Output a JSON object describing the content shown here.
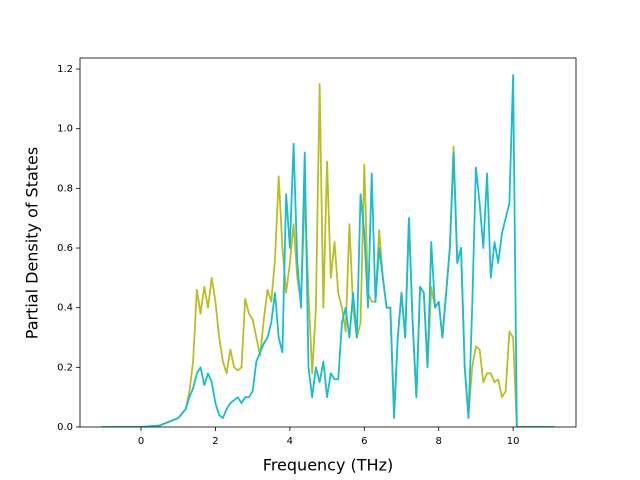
{
  "chart_data": {
    "type": "line",
    "xlabel": "Frequency (THz)",
    "ylabel": "Partial Density of States",
    "x": [
      -1.06,
      0,
      0.5,
      1.0,
      1.2,
      1.3,
      1.4,
      1.5,
      1.6,
      1.7,
      1.8,
      1.9,
      2.0,
      2.1,
      2.2,
      2.3,
      2.4,
      2.5,
      2.6,
      2.7,
      2.8,
      2.9,
      3.0,
      3.1,
      3.2,
      3.3,
      3.4,
      3.5,
      3.6,
      3.7,
      3.8,
      3.9,
      4.0,
      4.1,
      4.2,
      4.3,
      4.4,
      4.5,
      4.6,
      4.7,
      4.8,
      4.9,
      5.0,
      5.1,
      5.2,
      5.3,
      5.4,
      5.5,
      5.6,
      5.7,
      5.8,
      5.9,
      6.0,
      6.1,
      6.2,
      6.3,
      6.4,
      6.5,
      6.6,
      6.7,
      6.8,
      6.9,
      7.0,
      7.1,
      7.2,
      7.3,
      7.4,
      7.5,
      7.6,
      7.7,
      7.8,
      7.9,
      8.0,
      8.1,
      8.2,
      8.3,
      8.4,
      8.5,
      8.6,
      8.7,
      8.8,
      8.9,
      9.0,
      9.1,
      9.2,
      9.3,
      9.4,
      9.5,
      9.6,
      9.7,
      9.8,
      9.9,
      10.0,
      10.1,
      11.1
    ],
    "series": [
      {
        "color": "#bcbd22",
        "values": [
          0,
          0,
          0.005,
          0.03,
          0.06,
          0.12,
          0.22,
          0.46,
          0.38,
          0.47,
          0.4,
          0.5,
          0.42,
          0.3,
          0.22,
          0.18,
          0.26,
          0.2,
          0.19,
          0.2,
          0.43,
          0.38,
          0.36,
          0.3,
          0.24,
          0.36,
          0.46,
          0.42,
          0.56,
          0.84,
          0.6,
          0.45,
          0.55,
          0.68,
          0.5,
          0.42,
          0.78,
          0.45,
          0.18,
          0.4,
          1.15,
          0.4,
          0.89,
          0.5,
          0.62,
          0.45,
          0.4,
          0.32,
          0.68,
          0.4,
          0.3,
          0.35,
          0.88,
          0.45,
          0.42,
          0.42,
          0.66,
          0.5,
          0.4,
          0.4,
          0.05,
          0.3,
          0.45,
          0.3,
          0.7,
          0.35,
          0.1,
          0.47,
          0.45,
          0.2,
          0.47,
          0.4,
          0.42,
          0.3,
          0.45,
          0.6,
          0.94,
          0.55,
          0.6,
          0.2,
          0.04,
          0.2,
          0.27,
          0.26,
          0.15,
          0.18,
          0.18,
          0.15,
          0.16,
          0.1,
          0.12,
          0.32,
          0.3,
          0,
          0
        ]
      },
      {
        "color": "#17becf",
        "values": [
          0,
          0,
          0.005,
          0.03,
          0.06,
          0.1,
          0.13,
          0.18,
          0.2,
          0.14,
          0.18,
          0.15,
          0.08,
          0.04,
          0.03,
          0.06,
          0.08,
          0.09,
          0.1,
          0.08,
          0.1,
          0.1,
          0.12,
          0.22,
          0.25,
          0.28,
          0.3,
          0.35,
          0.45,
          0.3,
          0.25,
          0.78,
          0.6,
          0.95,
          0.55,
          0.4,
          0.92,
          0.2,
          0.1,
          0.2,
          0.15,
          0.22,
          0.1,
          0.18,
          0.16,
          0.16,
          0.35,
          0.4,
          0.3,
          0.45,
          0.3,
          0.78,
          0.65,
          0.4,
          0.85,
          0.42,
          0.6,
          0.5,
          0.4,
          0.4,
          0.03,
          0.3,
          0.45,
          0.3,
          0.7,
          0.35,
          0.1,
          0.47,
          0.45,
          0.2,
          0.62,
          0.4,
          0.42,
          0.3,
          0.45,
          0.6,
          0.92,
          0.55,
          0.6,
          0.2,
          0.03,
          0.4,
          0.87,
          0.75,
          0.6,
          0.85,
          0.5,
          0.62,
          0.55,
          0.65,
          0.7,
          0.75,
          1.18,
          0,
          0
        ]
      }
    ],
    "xlim": [
      -1.64,
      11.69
    ],
    "ylim": [
      0,
      1.237
    ],
    "xticks": [
      0,
      2,
      4,
      6,
      8,
      10
    ],
    "yticks": [
      {
        "value": 0,
        "label": "0.0"
      },
      0.2,
      0.4,
      0.6,
      0.8,
      {
        "value": 1,
        "label": "1.0"
      },
      1.2
    ],
    "grid": false
  }
}
